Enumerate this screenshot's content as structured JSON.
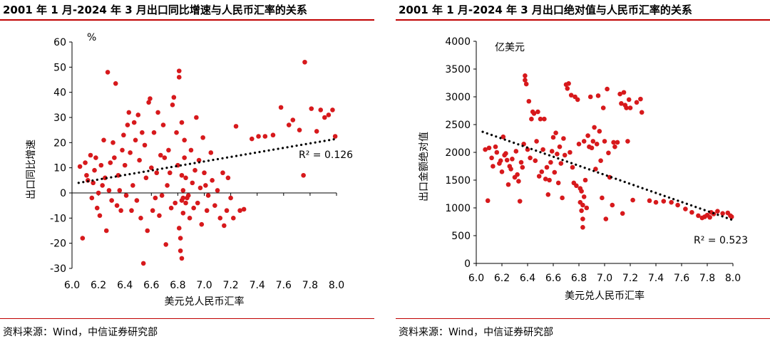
{
  "colors": {
    "accent": "#c00000",
    "point": "#d7191c",
    "trend": "#000000"
  },
  "left": {
    "title": "2001 年 1 月-2024 年 3 月出口同比增速与人民币汇率的关系",
    "source": "资料来源：Wind，中信证券研究部"
  },
  "right": {
    "title": "2001 年 1 月-2024 年 3 月出口绝对值与人民币汇率的关系",
    "source": "资料来源：Wind，中信证券研究部"
  },
  "chart_data": [
    {
      "type": "scatter",
      "title": "2001 年 1 月-2024 年 3 月出口同比增速与人民币汇率的关系",
      "xlabel": "美元兑人民币汇率",
      "ylabel": "出口同比增速",
      "unit": "%",
      "xlim": [
        6.0,
        8.0
      ],
      "ylim": [
        -30,
        60
      ],
      "xticks": [
        "6.0",
        "6.2",
        "6.4",
        "6.6",
        "6.8",
        "7.0",
        "7.2",
        "7.4",
        "7.6",
        "7.8",
        "8.0"
      ],
      "yticks": [
        "60",
        "50",
        "40",
        "30",
        "20",
        "10",
        "0",
        "-10",
        "-20",
        "-30"
      ],
      "trendline": {
        "x": [
          6.05,
          8.0
        ],
        "y": [
          4.0,
          21.5
        ],
        "style": "dotted"
      },
      "r2_label": "R² = 0.126",
      "points": [
        [
          6.06,
          10.5
        ],
        [
          6.08,
          -18
        ],
        [
          6.1,
          12
        ],
        [
          6.11,
          7
        ],
        [
          6.12,
          5
        ],
        [
          6.14,
          15
        ],
        [
          6.15,
          -2
        ],
        [
          6.16,
          4
        ],
        [
          6.17,
          9
        ],
        [
          6.18,
          14
        ],
        [
          6.19,
          -6
        ],
        [
          6.2,
          0
        ],
        [
          6.21,
          -9
        ],
        [
          6.22,
          11
        ],
        [
          6.23,
          3
        ],
        [
          6.24,
          21
        ],
        [
          6.25,
          6
        ],
        [
          6.26,
          -15
        ],
        [
          6.27,
          48
        ],
        [
          6.28,
          1
        ],
        [
          6.29,
          12
        ],
        [
          6.3,
          -3
        ],
        [
          6.31,
          20
        ],
        [
          6.32,
          14
        ],
        [
          6.33,
          43.5
        ],
        [
          6.34,
          -5
        ],
        [
          6.35,
          7
        ],
        [
          6.36,
          1
        ],
        [
          6.37,
          -7
        ],
        [
          6.38,
          17
        ],
        [
          6.39,
          23
        ],
        [
          6.4,
          11
        ],
        [
          6.41,
          -1
        ],
        [
          6.42,
          27
        ],
        [
          6.43,
          32
        ],
        [
          6.44,
          16
        ],
        [
          6.45,
          -7
        ],
        [
          6.46,
          3
        ],
        [
          6.47,
          28
        ],
        [
          6.48,
          21
        ],
        [
          6.49,
          -3
        ],
        [
          6.5,
          31
        ],
        [
          6.51,
          13
        ],
        [
          6.52,
          -10
        ],
        [
          6.53,
          24
        ],
        [
          6.54,
          -28
        ],
        [
          6.55,
          19
        ],
        [
          6.56,
          6
        ],
        [
          6.57,
          -15
        ],
        [
          6.58,
          36
        ],
        [
          6.59,
          37.5
        ],
        [
          6.6,
          10
        ],
        [
          6.61,
          -7
        ],
        [
          6.62,
          24
        ],
        [
          6.63,
          -2
        ],
        [
          6.64,
          8
        ],
        [
          6.65,
          32
        ],
        [
          6.66,
          -9
        ],
        [
          6.67,
          15
        ],
        [
          6.68,
          -1
        ],
        [
          6.69,
          27
        ],
        [
          6.7,
          14
        ],
        [
          6.71,
          -20.5
        ],
        [
          6.72,
          3
        ],
        [
          6.73,
          17
        ],
        [
          6.74,
          8
        ],
        [
          6.75,
          -6
        ],
        [
          6.76,
          35
        ],
        [
          6.77,
          38
        ],
        [
          6.78,
          -4
        ],
        [
          6.79,
          24
        ],
        [
          6.8,
          11
        ],
        [
          6.81,
          48.5
        ],
        [
          6.81,
          46
        ],
        [
          6.81,
          -14
        ],
        [
          6.82,
          -18
        ],
        [
          6.82,
          -23
        ],
        [
          6.83,
          -26
        ],
        [
          6.83,
          -3
        ],
        [
          6.83,
          28
        ],
        [
          6.83,
          7
        ],
        [
          6.84,
          -2
        ],
        [
          6.84,
          -8
        ],
        [
          6.84,
          1
        ],
        [
          6.85,
          21
        ],
        [
          6.85,
          14
        ],
        [
          6.86,
          -4
        ],
        [
          6.86,
          6
        ],
        [
          6.87,
          -2
        ],
        [
          6.88,
          -1
        ],
        [
          6.89,
          -10
        ],
        [
          6.9,
          17
        ],
        [
          6.91,
          4
        ],
        [
          6.92,
          -6
        ],
        [
          6.93,
          9
        ],
        [
          6.94,
          30
        ],
        [
          6.95,
          -4
        ],
        [
          6.96,
          13
        ],
        [
          6.97,
          2
        ],
        [
          6.98,
          -12.5
        ],
        [
          6.99,
          22
        ],
        [
          7.0,
          8
        ],
        [
          7.01,
          3
        ],
        [
          7.02,
          -7
        ],
        [
          7.03,
          -1
        ],
        [
          7.05,
          16
        ],
        [
          7.06,
          5
        ],
        [
          7.08,
          -5
        ],
        [
          7.1,
          1
        ],
        [
          7.12,
          -10
        ],
        [
          7.14,
          8
        ],
        [
          7.15,
          -13
        ],
        [
          7.17,
          -7
        ],
        [
          7.18,
          6
        ],
        [
          7.2,
          -2
        ],
        [
          7.22,
          -10
        ],
        [
          7.24,
          26.5
        ],
        [
          7.27,
          -7
        ],
        [
          7.3,
          -6.5
        ],
        [
          7.36,
          21.5
        ],
        [
          7.41,
          22.5
        ],
        [
          7.46,
          22.5
        ],
        [
          7.52,
          23
        ],
        [
          7.58,
          34
        ],
        [
          7.64,
          27
        ],
        [
          7.67,
          29
        ],
        [
          7.72,
          25
        ],
        [
          7.76,
          52
        ],
        [
          7.81,
          33.5
        ],
        [
          7.85,
          24.5
        ],
        [
          7.88,
          33
        ],
        [
          7.91,
          30
        ],
        [
          7.94,
          31
        ],
        [
          7.97,
          33
        ],
        [
          7.99,
          22.5
        ],
        [
          7.75,
          7
        ]
      ]
    },
    {
      "type": "scatter",
      "title": "2001 年 1 月-2024 年 3 月出口绝对值与人民币汇率的关系",
      "xlabel": "美元兑人民币汇率",
      "ylabel": "出口金额绝对值",
      "unit": "亿美元",
      "xlim": [
        6.0,
        8.0
      ],
      "ylim": [
        0,
        4000
      ],
      "xticks": [
        "6.0",
        "6.2",
        "6.4",
        "6.6",
        "6.8",
        "7.0",
        "7.2",
        "7.4",
        "7.6",
        "7.8",
        "8.0"
      ],
      "yticks": [
        "4000",
        "3500",
        "3000",
        "2500",
        "2000",
        "1500",
        "1000",
        "500",
        "0"
      ],
      "trendline": {
        "x": [
          6.05,
          8.0
        ],
        "y": [
          2370,
          780
        ],
        "style": "dotted"
      },
      "r2_label": "R² = 0.523",
      "points": [
        [
          6.07,
          2050
        ],
        [
          6.09,
          1130
        ],
        [
          6.1,
          2080
        ],
        [
          6.12,
          1900
        ],
        [
          6.13,
          1750
        ],
        [
          6.15,
          2100
        ],
        [
          6.16,
          2000
        ],
        [
          6.18,
          1800
        ],
        [
          6.19,
          1850
        ],
        [
          6.2,
          1650
        ],
        [
          6.21,
          2280
        ],
        [
          6.22,
          1950
        ],
        [
          6.23,
          1980
        ],
        [
          6.24,
          1860
        ],
        [
          6.25,
          1420
        ],
        [
          6.26,
          1750
        ],
        [
          6.27,
          1700
        ],
        [
          6.28,
          1880
        ],
        [
          6.3,
          1550
        ],
        [
          6.31,
          2020
        ],
        [
          6.32,
          1600
        ],
        [
          6.33,
          1480
        ],
        [
          6.34,
          1120
        ],
        [
          6.35,
          1820
        ],
        [
          6.36,
          1730
        ],
        [
          6.37,
          2150
        ],
        [
          6.38,
          3380
        ],
        [
          6.38,
          3300
        ],
        [
          6.39,
          3230
        ],
        [
          6.4,
          2050
        ],
        [
          6.41,
          2920
        ],
        [
          6.42,
          1900
        ],
        [
          6.43,
          2600
        ],
        [
          6.44,
          2730
        ],
        [
          6.45,
          2700
        ],
        [
          6.46,
          1850
        ],
        [
          6.47,
          2200
        ],
        [
          6.48,
          2730
        ],
        [
          6.49,
          1570
        ],
        [
          6.5,
          2600
        ],
        [
          6.51,
          1650
        ],
        [
          6.52,
          2050
        ],
        [
          6.53,
          2600
        ],
        [
          6.54,
          1520
        ],
        [
          6.55,
          1730
        ],
        [
          6.56,
          1240
        ],
        [
          6.57,
          1500
        ],
        [
          6.58,
          1820
        ],
        [
          6.59,
          2020
        ],
        [
          6.6,
          2270
        ],
        [
          6.61,
          1640
        ],
        [
          6.62,
          2350
        ],
        [
          6.63,
          1970
        ],
        [
          6.64,
          1450
        ],
        [
          6.65,
          2100
        ],
        [
          6.66,
          1800
        ],
        [
          6.67,
          1180
        ],
        [
          6.68,
          2250
        ],
        [
          6.69,
          1950
        ],
        [
          6.7,
          3220
        ],
        [
          6.71,
          3150
        ],
        [
          6.72,
          3240
        ],
        [
          6.73,
          2000
        ],
        [
          6.74,
          3030
        ],
        [
          6.75,
          1730
        ],
        [
          6.76,
          1450
        ],
        [
          6.77,
          3000
        ],
        [
          6.78,
          1400
        ],
        [
          6.79,
          2950
        ],
        [
          6.8,
          2150
        ],
        [
          6.81,
          1350
        ],
        [
          6.81,
          1100
        ],
        [
          6.82,
          950
        ],
        [
          6.82,
          1300
        ],
        [
          6.83,
          1050
        ],
        [
          6.83,
          800
        ],
        [
          6.83,
          650
        ],
        [
          6.84,
          1200
        ],
        [
          6.84,
          2200
        ],
        [
          6.85,
          1500
        ],
        [
          6.86,
          1000
        ],
        [
          6.87,
          2300
        ],
        [
          6.88,
          2100
        ],
        [
          6.89,
          3000
        ],
        [
          6.9,
          2080
        ],
        [
          6.91,
          2200
        ],
        [
          6.92,
          2450
        ],
        [
          6.93,
          1700
        ],
        [
          6.94,
          2150
        ],
        [
          6.95,
          3020
        ],
        [
          6.96,
          2380
        ],
        [
          6.97,
          1850
        ],
        [
          6.98,
          1180
        ],
        [
          6.99,
          2800
        ],
        [
          7.0,
          2200
        ],
        [
          7.01,
          800
        ],
        [
          7.02,
          3140
        ],
        [
          7.03,
          1990
        ],
        [
          7.04,
          1550
        ],
        [
          7.06,
          1050
        ],
        [
          7.07,
          2180
        ],
        [
          7.08,
          2100
        ],
        [
          7.1,
          2180
        ],
        [
          7.12,
          3050
        ],
        [
          7.13,
          2880
        ],
        [
          7.14,
          900
        ],
        [
          7.15,
          3080
        ],
        [
          7.16,
          2850
        ],
        [
          7.17,
          2800
        ],
        [
          7.18,
          2200
        ],
        [
          7.19,
          2950
        ],
        [
          7.2,
          2800
        ],
        [
          7.22,
          1140
        ],
        [
          7.25,
          2900
        ],
        [
          7.28,
          2960
        ],
        [
          7.29,
          2720
        ],
        [
          7.35,
          1130
        ],
        [
          7.4,
          1100
        ],
        [
          7.46,
          1120
        ],
        [
          7.52,
          1100
        ],
        [
          7.57,
          1050
        ],
        [
          7.63,
          980
        ],
        [
          7.68,
          920
        ],
        [
          7.73,
          860
        ],
        [
          7.78,
          840
        ],
        [
          7.8,
          870
        ],
        [
          7.83,
          920
        ],
        [
          7.85,
          890
        ],
        [
          7.88,
          940
        ],
        [
          7.92,
          900
        ],
        [
          7.96,
          910
        ],
        [
          7.98,
          860
        ],
        [
          7.99,
          840
        ],
        [
          7.76,
          820
        ],
        [
          7.82,
          830
        ]
      ]
    }
  ]
}
